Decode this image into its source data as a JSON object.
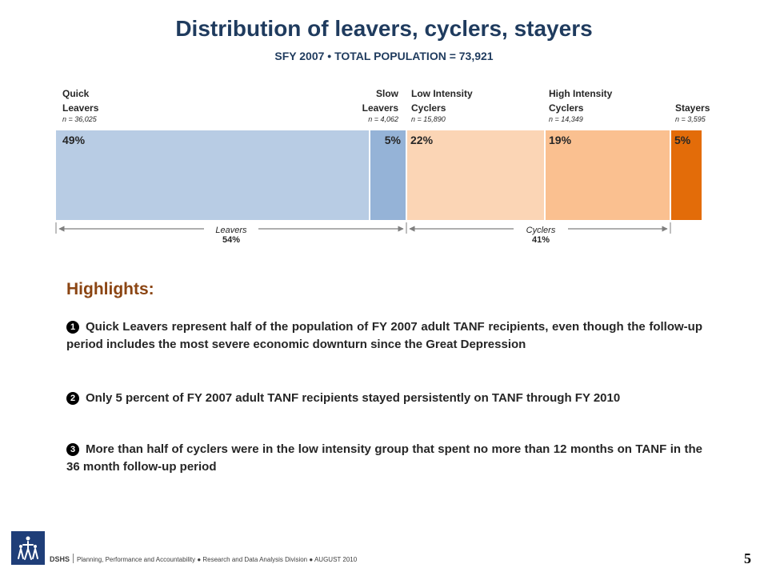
{
  "title": "Distribution of leavers, cyclers, stayers",
  "subtitle": "SFY 2007 • TOTAL POPULATION = 73,921",
  "segments": [
    {
      "label_line1": "Quick",
      "label_line2": "Leavers",
      "n": "n = 36,025",
      "percent": "49%",
      "color": "#b8cce4"
    },
    {
      "label_line1": "Slow",
      "label_line2": "Leavers",
      "n": "n = 4,062",
      "percent": "5%",
      "color": "#95b3d7"
    },
    {
      "label_line1": "Low Intensity",
      "label_line2": "Cyclers",
      "n": "n = 15,890",
      "percent": "22%",
      "color": "#fbd5b5"
    },
    {
      "label_line1": "High Intensity",
      "label_line2": "Cyclers",
      "n": "n = 14,349",
      "percent": "19%",
      "color": "#fac090"
    },
    {
      "label_line1": "Stayers",
      "n": "n = 3,595",
      "percent": "5%",
      "color": "#e36c09"
    }
  ],
  "brackets": {
    "leavers": {
      "name": "Leavers",
      "value": "54%"
    },
    "cyclers": {
      "name": "Cyclers",
      "value": "41%"
    }
  },
  "highlights": {
    "title": "Highlights:",
    "items": [
      {
        "marker": "1",
        "text": "Quick Leavers represent half of the population  of FY 2007 adult TANF recipients, even though the follow-up period includes the most severe economic downturn since the Great Depression"
      },
      {
        "marker": "2",
        "text": "Only 5 percent of FY 2007 adult TANF recipients stayed persistently on TANF through FY 2010"
      },
      {
        "marker": "3",
        "text": "More than half of cyclers were in the low intensity group that spent no more than 12 months on TANF in the 36 month follow-up period"
      }
    ]
  },
  "footer": {
    "org": "DSHS",
    "text": "Planning, Performance and Accountability ● Research and Data Analysis Division ● AUGUST 2010",
    "page": "5"
  },
  "icons": {
    "logo": "dshs-logo-icon",
    "bullets": "circled-number-icon"
  }
}
